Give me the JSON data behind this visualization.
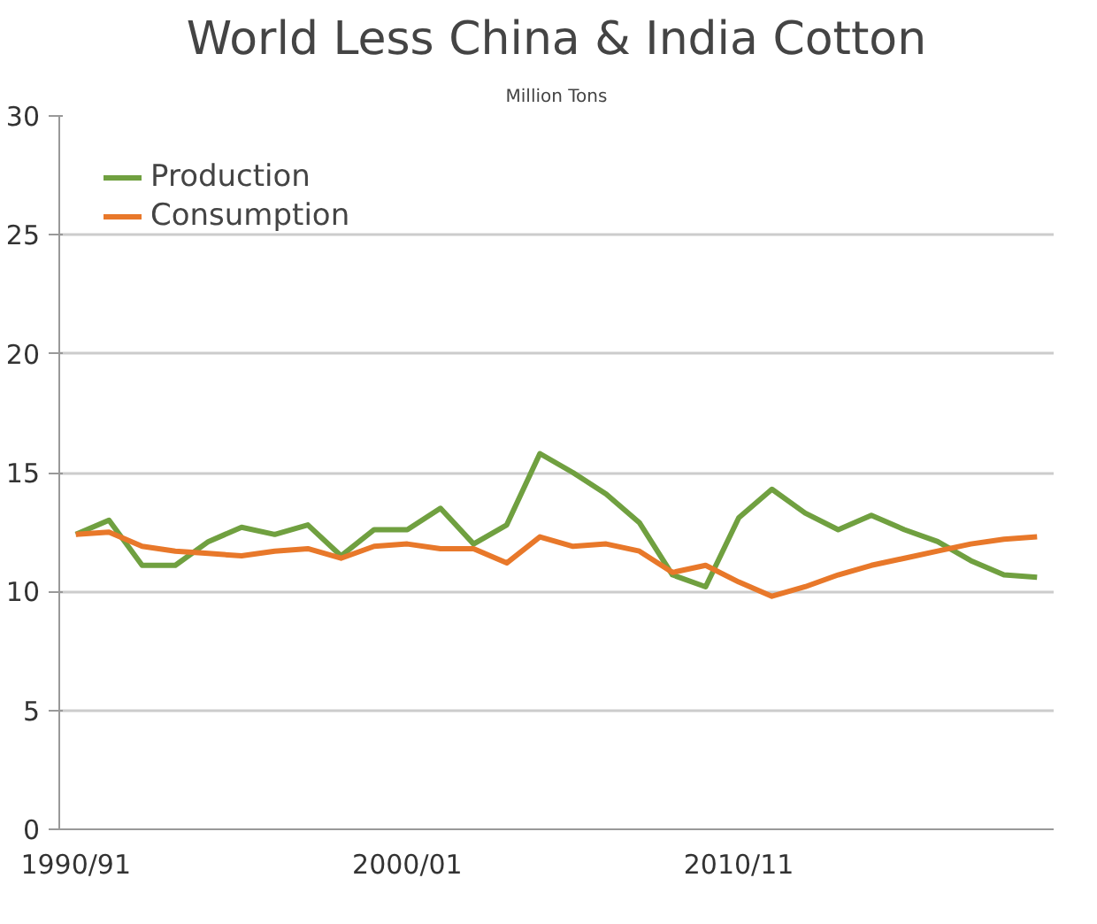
{
  "chart_data": {
    "type": "line",
    "title": "World Less China & India Cotton",
    "subtitle": "Million Tons",
    "categories": [
      "1990/91",
      null,
      null,
      null,
      null,
      null,
      null,
      null,
      null,
      null,
      "2000/01",
      null,
      null,
      null,
      null,
      null,
      null,
      null,
      null,
      null,
      "2010/11",
      null,
      null,
      null,
      null,
      null,
      null,
      null,
      null,
      null
    ],
    "series": [
      {
        "name": "Production",
        "color": "#70a040",
        "values": [
          12.4,
          13.0,
          11.1,
          11.1,
          12.1,
          12.7,
          12.4,
          12.8,
          11.5,
          12.6,
          12.6,
          13.5,
          12.0,
          12.8,
          15.8,
          15.0,
          14.1,
          12.9,
          10.7,
          10.2,
          13.1,
          14.3,
          13.3,
          12.6,
          13.2,
          12.6,
          12.1,
          11.3,
          10.7,
          10.6
        ]
      },
      {
        "name": "Consumption",
        "color": "#e8782a",
        "values": [
          12.4,
          12.5,
          11.9,
          11.7,
          11.6,
          11.5,
          11.7,
          11.8,
          11.4,
          11.9,
          12.0,
          11.8,
          11.8,
          11.2,
          12.3,
          11.9,
          12.0,
          11.7,
          10.8,
          11.1,
          10.4,
          9.8,
          10.2,
          10.7,
          11.1,
          11.4,
          11.7,
          12.0,
          12.2,
          12.3
        ]
      }
    ],
    "ylim": [
      0,
      30
    ],
    "yticks": [
      0,
      5,
      10,
      15,
      20,
      25,
      30
    ],
    "grid": "y",
    "legend": "top left",
    "marker": "none",
    "line_style": "solid"
  }
}
